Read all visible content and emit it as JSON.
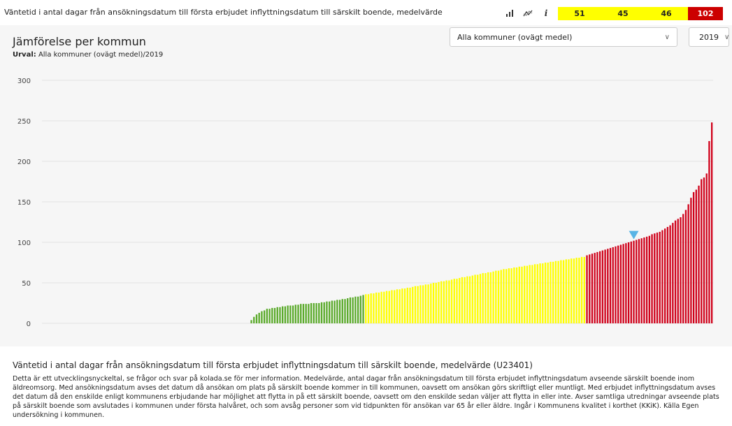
{
  "header": {
    "title": "Väntetid i antal dagar från ansökningsdatum till första erbjudet inflyttningsdatum till särskilt boende, medelvärde",
    "icons": [
      "bar-chart-icon",
      "trend-line-icon",
      "info-icon"
    ],
    "info_glyph": "i",
    "scores": [
      {
        "value": "51",
        "color": "#ffff00"
      },
      {
        "value": "45",
        "color": "#ffff00"
      },
      {
        "value": "46",
        "color": "#ffff00"
      },
      {
        "value": "102",
        "color": "#cc0000"
      }
    ]
  },
  "panel": {
    "title": "Jämförelse per kommun",
    "selection_label": "Urval:",
    "selection_value": "Alla kommuner (ovägt medel)/2019",
    "municipality_select": "Alla kommuner (ovägt medel)",
    "year_select": "2019"
  },
  "chart_data": {
    "type": "bar",
    "ylim": [
      0,
      300
    ],
    "yticks": [
      0,
      50,
      100,
      150,
      200,
      250,
      300
    ],
    "grid": true,
    "legend": "none",
    "colors": {
      "green": "#5aaa2a",
      "yellow": "#ffff00",
      "red": "#d0021b",
      "marker": "#5ab4e5"
    },
    "empty_slots": 80,
    "values": [
      4,
      8,
      11,
      13,
      15,
      16,
      18,
      18,
      19,
      19,
      20,
      20,
      21,
      21,
      22,
      22,
      22,
      23,
      23,
      24,
      24,
      24,
      24,
      25,
      25,
      25,
      25,
      26,
      26,
      27,
      27,
      28,
      28,
      29,
      29,
      30,
      30,
      31,
      32,
      32,
      33,
      33,
      34,
      35,
      36,
      36,
      37,
      37,
      38,
      38,
      39,
      39,
      40,
      40,
      41,
      41,
      42,
      42,
      43,
      43,
      44,
      44,
      45,
      46,
      46,
      47,
      47,
      48,
      48,
      49,
      50,
      50,
      51,
      52,
      52,
      53,
      53,
      54,
      55,
      55,
      56,
      57,
      57,
      58,
      58,
      59,
      60,
      60,
      61,
      62,
      62,
      63,
      63,
      64,
      65,
      65,
      66,
      67,
      67,
      68,
      68,
      69,
      69,
      70,
      70,
      71,
      71,
      72,
      72,
      73,
      73,
      74,
      74,
      75,
      75,
      76,
      76,
      77,
      77,
      78,
      78,
      79,
      79,
      80,
      80,
      81,
      81,
      82,
      82,
      84,
      85,
      86,
      87,
      88,
      89,
      90,
      91,
      92,
      93,
      94,
      95,
      96,
      97,
      98,
      99,
      100,
      101,
      102,
      103,
      104,
      105,
      106,
      107,
      108,
      110,
      111,
      112,
      113,
      115,
      117,
      119,
      121,
      124,
      127,
      129,
      131,
      135,
      140,
      147,
      155,
      162,
      165,
      170,
      178,
      180,
      185,
      225,
      248
    ],
    "green_count": 44,
    "yellow_count": 85,
    "marker_value": 102,
    "marker_index": 147
  },
  "description": {
    "title": "Väntetid i antal dagar från ansökningsdatum till första erbjudet inflyttningsdatum till särskilt boende, medelvärde (U23401)",
    "body": "Detta är ett utvecklingsnyckeltal, se frågor och svar på kolada.se för mer information. Medelvärde, antal dagar från ansökningsdatum till första erbjudet inflyttningsdatum avseende särskilt boende inom äldreomsorg. Med ansökningsdatum avses det datum då ansökan om plats på särskilt boende kommer in till kommunen, oavsett om ansökan görs skriftligt eller muntligt. Med erbjudet inflyttningsdatum avses det datum då den enskilde enligt kommunens erbjudande har möjlighet att flytta in på ett särskilt boende, oavsett om den enskilde sedan väljer att flytta in eller inte. Avser samtliga utredningar avseende plats på särskilt boende som avslutades i kommunen under första halvåret, och som avsåg personer som vid tidpunkten för ansökan var 65 år eller äldre. Ingår i Kommunens kvalitet i korthet (KKiK). Källa Egen undersökning i kommunen."
  }
}
